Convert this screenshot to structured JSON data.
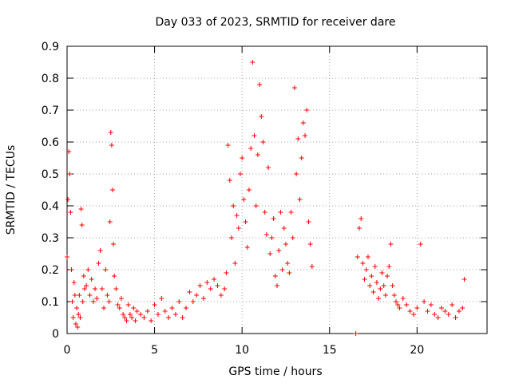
{
  "chart_data": {
    "type": "scatter",
    "title": "Day 033 of 2023, SRMTID for receiver dare",
    "xlabel": "GPS time / hours",
    "ylabel": "SRMTID / TECUs",
    "xlim": [
      0,
      24
    ],
    "ylim": [
      0,
      0.9
    ],
    "x_ticks": [
      0,
      5,
      10,
      15,
      20
    ],
    "x_tick_labels": [
      "0",
      "5",
      "10",
      "15",
      "20"
    ],
    "y_ticks": [
      0,
      0.1,
      0.2,
      0.3,
      0.4,
      0.5,
      0.6,
      0.7,
      0.8,
      0.9
    ],
    "y_tick_labels": [
      "0",
      "0.1",
      "0.2",
      "0.3",
      "0.4",
      "0.5",
      "0.6",
      "0.7",
      "0.8",
      "0.9"
    ],
    "grid": true,
    "marker": "+",
    "series": [
      {
        "name": "SRMTID",
        "color": "#ff0000",
        "x": [
          0.0,
          0.05,
          0.1,
          0.15,
          0.2,
          0.25,
          0.3,
          0.35,
          0.4,
          0.45,
          0.5,
          0.55,
          0.6,
          0.65,
          0.7,
          0.75,
          0.8,
          0.85,
          0.9,
          0.95,
          1.0,
          1.1,
          1.2,
          1.3,
          1.4,
          1.5,
          1.6,
          1.7,
          1.8,
          1.9,
          2.0,
          2.1,
          2.2,
          2.3,
          2.4,
          2.45,
          2.5,
          2.55,
          2.6,
          2.65,
          2.7,
          2.8,
          2.9,
          3.0,
          3.1,
          3.2,
          3.3,
          3.4,
          3.5,
          3.6,
          3.7,
          3.8,
          3.9,
          4.0,
          4.2,
          4.4,
          4.6,
          4.8,
          5.0,
          5.2,
          5.4,
          5.6,
          5.8,
          6.0,
          6.2,
          6.4,
          6.6,
          6.8,
          7.0,
          7.2,
          7.4,
          7.6,
          7.8,
          8.0,
          8.2,
          8.4,
          8.6,
          8.8,
          9.0,
          9.1,
          9.2,
          9.3,
          9.4,
          9.5,
          9.6,
          9.7,
          9.8,
          9.9,
          10.0,
          10.1,
          10.2,
          10.3,
          10.4,
          10.5,
          10.6,
          10.7,
          10.8,
          10.9,
          11.0,
          11.1,
          11.2,
          11.3,
          11.4,
          11.5,
          11.6,
          11.7,
          11.8,
          11.9,
          12.0,
          12.1,
          12.2,
          12.3,
          12.4,
          12.5,
          12.6,
          12.7,
          12.8,
          12.9,
          13.0,
          13.1,
          13.2,
          13.3,
          13.4,
          13.5,
          13.6,
          13.7,
          13.8,
          13.9,
          14.0,
          16.5,
          16.6,
          16.7,
          16.8,
          16.9,
          17.0,
          17.1,
          17.2,
          17.3,
          17.4,
          17.5,
          17.6,
          17.7,
          17.8,
          17.9,
          18.0,
          18.1,
          18.2,
          18.3,
          18.4,
          18.5,
          18.6,
          18.7,
          18.8,
          18.9,
          19.0,
          19.2,
          19.4,
          19.6,
          19.8,
          20.0,
          20.2,
          20.4,
          20.6,
          20.8,
          21.0,
          21.2,
          21.4,
          21.6,
          21.8,
          22.0,
          22.2,
          22.4,
          22.6,
          22.7
        ],
        "y": [
          0.24,
          0.42,
          0.57,
          0.5,
          0.38,
          0.2,
          0.1,
          0.05,
          0.16,
          0.12,
          0.03,
          0.08,
          0.02,
          0.06,
          0.12,
          0.05,
          0.39,
          0.34,
          0.1,
          0.18,
          0.14,
          0.15,
          0.2,
          0.12,
          0.17,
          0.1,
          0.14,
          0.11,
          0.22,
          0.26,
          0.14,
          0.08,
          0.2,
          0.12,
          0.1,
          0.35,
          0.63,
          0.59,
          0.45,
          0.28,
          0.18,
          0.14,
          0.09,
          0.08,
          0.11,
          0.06,
          0.05,
          0.04,
          0.09,
          0.06,
          0.05,
          0.08,
          0.04,
          0.07,
          0.06,
          0.05,
          0.07,
          0.04,
          0.09,
          0.06,
          0.11,
          0.07,
          0.05,
          0.08,
          0.06,
          0.1,
          0.05,
          0.08,
          0.13,
          0.1,
          0.12,
          0.15,
          0.11,
          0.16,
          0.14,
          0.17,
          0.15,
          0.12,
          0.14,
          0.19,
          0.59,
          0.48,
          0.3,
          0.4,
          0.22,
          0.37,
          0.33,
          0.5,
          0.55,
          0.42,
          0.35,
          0.27,
          0.45,
          0.58,
          0.85,
          0.62,
          0.4,
          0.56,
          0.78,
          0.68,
          0.6,
          0.38,
          0.31,
          0.52,
          0.25,
          0.3,
          0.36,
          0.18,
          0.15,
          0.26,
          0.38,
          0.2,
          0.33,
          0.28,
          0.22,
          0.19,
          0.38,
          0.3,
          0.77,
          0.5,
          0.61,
          0.42,
          0.55,
          0.66,
          0.62,
          0.7,
          0.35,
          0.28,
          0.21,
          0.0,
          0.24,
          0.33,
          0.36,
          0.22,
          0.17,
          0.2,
          0.24,
          0.15,
          0.18,
          0.13,
          0.21,
          0.16,
          0.11,
          0.14,
          0.19,
          0.15,
          0.12,
          0.18,
          0.21,
          0.28,
          0.15,
          0.12,
          0.1,
          0.09,
          0.08,
          0.11,
          0.09,
          0.07,
          0.06,
          0.08,
          0.28,
          0.1,
          0.07,
          0.09,
          0.06,
          0.05,
          0.08,
          0.07,
          0.06,
          0.09,
          0.05,
          0.07,
          0.08,
          0.17
        ]
      }
    ]
  }
}
